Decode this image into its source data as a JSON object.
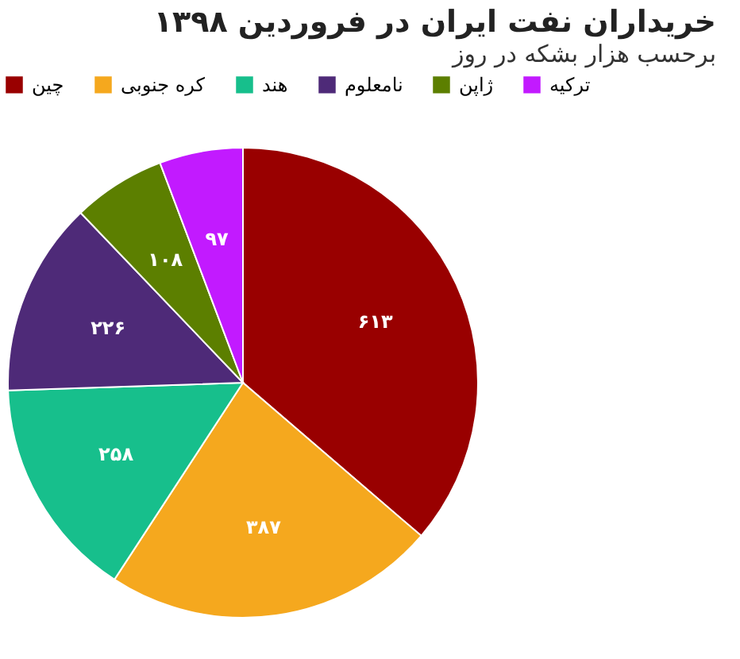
{
  "chart_data": {
    "type": "pie",
    "title": "خریداران نفت ایران در فروردین ۱۳۹۸",
    "subtitle": "برحسب هزار بشکه در روز",
    "categories": [
      "چین",
      "کره جنوبی",
      "هند",
      "نامعلوم",
      "ژاپن",
      "ترکیه"
    ],
    "values": [
      613,
      387,
      258,
      226,
      108,
      97
    ],
    "value_labels": [
      "۶۱۳",
      "۳۸۷",
      "۲۵۸",
      "۲۲۶",
      "۱۰۸",
      "۹۷"
    ],
    "colors": [
      "#990000",
      "#f5a81e",
      "#17bf8c",
      "#4e2a78",
      "#5c7f00",
      "#c21aff"
    ],
    "legend": "top"
  }
}
